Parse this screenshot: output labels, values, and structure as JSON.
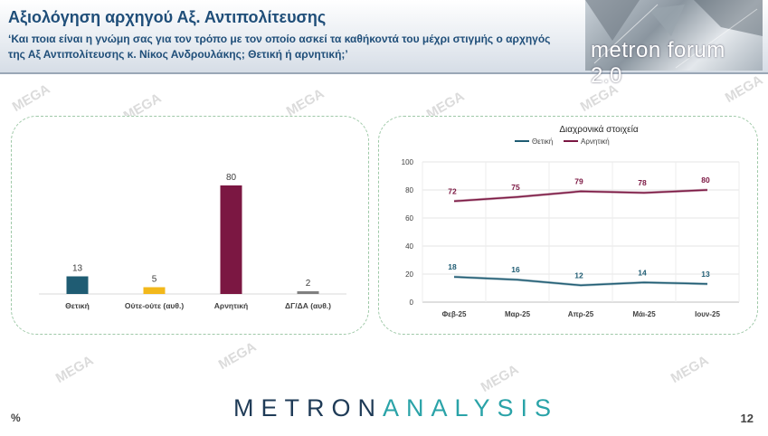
{
  "header": {
    "title": "Αξιολόγηση αρχηγού Αξ. Αντιπολίτευσης",
    "question": "‘Και ποια είναι η γνώμη σας για τον τρόπο με τον οποίο ασκεί τα καθήκοντά του μέχρι στιγμής ο αρχηγός της Αξ Αντιπολίτευσης κ. Νίκος Ανδρουλάκης; Θετική ή αρνητική;’",
    "logo_text": "metron forum 2.0"
  },
  "watermark": "MEGA",
  "footer": {
    "brand_dark": "METRON",
    "brand_light": "ANALYSIS",
    "percent_sign": "%",
    "page_number": "12"
  },
  "colors": {
    "positive": "#1f5c73",
    "neutral": "#f2b81b",
    "negative": "#7b1742",
    "dk": "#7f7f7f"
  },
  "chart_data": [
    {
      "type": "bar",
      "categories": [
        "Θετική",
        "Ούτε-ούτε (αυθ.)",
        "Αρνητική",
        "ΔΓ/ΔΑ (αυθ.)"
      ],
      "values": [
        13,
        5,
        80,
        2
      ],
      "ylim": [
        0,
        100
      ],
      "grid": false
    },
    {
      "type": "line",
      "title": "Διαχρονικά στοιχεία",
      "x": [
        "Φεβ-25",
        "Μαρ-25",
        "Απρ-25",
        "Μάι-25",
        "Ιουν-25"
      ],
      "series": [
        {
          "name": "Θετική",
          "values": [
            18,
            16,
            12,
            14,
            13
          ]
        },
        {
          "name": "Αρνητική",
          "values": [
            72,
            75,
            79,
            78,
            80
          ]
        }
      ],
      "yticks": [
        0,
        20,
        40,
        60,
        80,
        100
      ],
      "ylim": [
        0,
        100
      ],
      "grid": true,
      "legend": "top"
    }
  ]
}
